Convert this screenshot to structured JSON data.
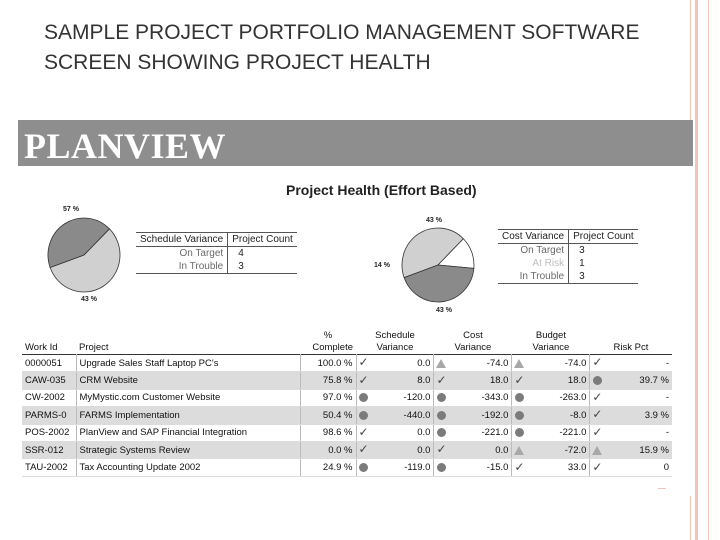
{
  "slide": {
    "title": "SAMPLE PROJECT PORTFOLIO MANAGEMENT SOFTWARE SCREEN SHOWING PROJECT HEALTH"
  },
  "banner": {
    "logo_text": "PLANVIEW"
  },
  "health": {
    "title": "Project Health (Effort Based)",
    "schedule_pie": {
      "label_top": "57 %",
      "label_bottom": "43 %",
      "slices": [
        57,
        43
      ]
    },
    "cost_pie": {
      "label_top": "43 %",
      "label_left": "14 %",
      "label_bottom": "43 %",
      "slices": [
        43,
        14,
        43
      ]
    },
    "schedule_table": {
      "headers": [
        "Schedule Variance",
        "Project Count"
      ],
      "rows": [
        {
          "label": "On Target",
          "count": "4"
        },
        {
          "label": "In Trouble",
          "count": "3"
        }
      ]
    },
    "cost_table": {
      "headers": [
        "Cost Variance",
        "Project Count"
      ],
      "rows": [
        {
          "label": "On Target",
          "count": "3"
        },
        {
          "label": "At Risk",
          "count": "1"
        },
        {
          "label": "In Trouble",
          "count": "3"
        }
      ]
    }
  },
  "projects": {
    "headers": {
      "work_id": "Work Id",
      "project": "Project",
      "complete_top": "%",
      "complete_bottom": "Complete",
      "schedule_top": "Schedule",
      "schedule_bottom": "Variance",
      "cost_top": "Cost",
      "cost_bottom": "Variance",
      "budget_top": "Budget",
      "budget_bottom": "Variance",
      "risk": "Risk Pct"
    },
    "rows": [
      {
        "id": "0000051",
        "name": "Upgrade Sales Staff Laptop PC's",
        "complete": "100.0 %",
        "sched_icon": "check",
        "sched": "0.0",
        "cost_icon": "triangle",
        "cost": "-74.0",
        "budget_icon": "triangle",
        "budget": "-74.0",
        "risk_icon": "check",
        "risk": "-"
      },
      {
        "id": "CAW-035",
        "name": "CRM Website",
        "complete": "75.8 %",
        "sched_icon": "check",
        "sched": "8.0",
        "cost_icon": "check",
        "cost": "18.0",
        "budget_icon": "check",
        "budget": "18.0",
        "risk_icon": "circle",
        "risk": "39.7 %"
      },
      {
        "id": "CW-2002",
        "name": "MyMystic.com Customer Website",
        "complete": "97.0 %",
        "sched_icon": "circle",
        "sched": "-120.0",
        "cost_icon": "circle",
        "cost": "-343.0",
        "budget_icon": "circle",
        "budget": "-263.0",
        "risk_icon": "check",
        "risk": "-"
      },
      {
        "id": "PARMS-0",
        "name": "FARMS Implementation",
        "complete": "50.4 %",
        "sched_icon": "circle",
        "sched": "-440.0",
        "cost_icon": "circle",
        "cost": "-192.0",
        "budget_icon": "circle",
        "budget": "-8.0",
        "risk_icon": "check",
        "risk": "3.9 %"
      },
      {
        "id": "POS-2002",
        "name": "PlanView and SAP Financial Integration",
        "complete": "98.6 %",
        "sched_icon": "check",
        "sched": "0.0",
        "cost_icon": "circle",
        "cost": "-221.0",
        "budget_icon": "circle",
        "budget": "-221.0",
        "risk_icon": "check",
        "risk": "-"
      },
      {
        "id": "SSR-012",
        "name": "Strategic Systems Review",
        "complete": "0.0 %",
        "sched_icon": "check",
        "sched": "0.0",
        "cost_icon": "check",
        "cost": "0.0",
        "budget_icon": "triangle",
        "budget": "-72.0",
        "risk_icon": "triangle",
        "risk": "15.9 %"
      },
      {
        "id": "TAU-2002",
        "name": "Tax Accounting Update 2002",
        "complete": "24.9 %",
        "sched_icon": "circle",
        "sched": "-119.0",
        "cost_icon": "circle",
        "cost": "-15.0",
        "budget_icon": "check",
        "budget": "33.0",
        "risk_icon": "check",
        "risk": "0"
      }
    ]
  },
  "colors": {
    "banner": "#8e8e8e",
    "pie_light": "#d0d0d0",
    "pie_dark": "#8a8a8a",
    "pie_white": "#ffffff",
    "row_shade": "#dcdcdc",
    "accent_line": "#f2c6b6"
  }
}
